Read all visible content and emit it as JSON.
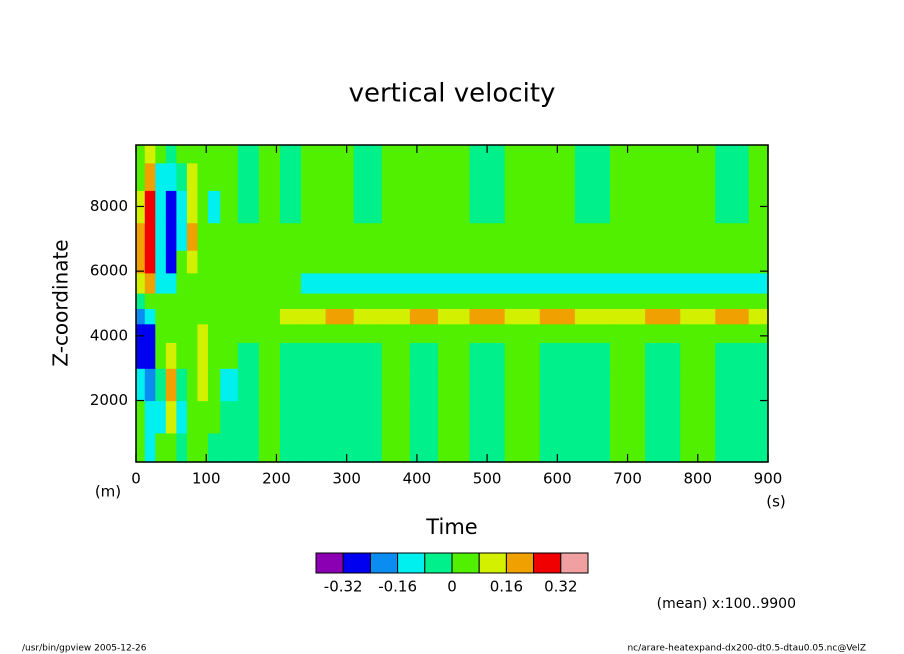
{
  "chart_data": {
    "type": "contour",
    "title": "vertical velocity",
    "x_label": "Time",
    "y_label": "Z-coordinate",
    "x_unit": "(s)",
    "y_unit": "(m)",
    "note": "(mean) x:100..9900",
    "footer_left": "/usr/bin/gpview  2005-12-26",
    "footer_right": "nc/arare-heatexpand-dx200-dt0.5-dtau0.05.nc@VelZ",
    "xlim": [
      0,
      900
    ],
    "ylim": [
      100,
      9900
    ],
    "xticks": [
      0,
      100,
      200,
      300,
      400,
      500,
      600,
      700,
      800,
      900
    ],
    "yticks": [
      2000,
      4000,
      6000,
      8000
    ],
    "x": [
      5,
      20,
      35,
      50,
      65,
      80,
      95,
      110,
      130,
      160,
      190,
      220,
      250,
      290,
      330,
      370,
      410,
      450,
      500,
      550,
      600,
      650,
      700,
      750,
      800,
      850,
      895
    ],
    "y": [
      500,
      1500,
      2500,
      3500,
      4100,
      4650,
      5050,
      5600,
      6300,
      7000,
      8000,
      9000,
      9700
    ],
    "z": [
      [
        0.04,
        -0.1,
        0.04,
        0.04,
        -0.04,
        0.04,
        0.04,
        -0.04,
        -0.04,
        -0.04,
        0.04,
        -0.04,
        -0.04,
        -0.04,
        -0.04,
        0.04,
        -0.04,
        0.04,
        -0.04,
        0.04,
        -0.04,
        -0.04,
        0.04,
        -0.04,
        0.04,
        -0.04,
        -0.04
      ],
      [
        0.04,
        -0.15,
        -0.1,
        0.12,
        -0.12,
        0.04,
        0.04,
        0.04,
        -0.04,
        -0.04,
        0.04,
        -0.04,
        -0.04,
        -0.04,
        -0.04,
        0.04,
        -0.04,
        0.04,
        -0.04,
        0.04,
        -0.04,
        -0.04,
        0.04,
        -0.04,
        0.04,
        -0.04,
        -0.04
      ],
      [
        -0.1,
        -0.2,
        -0.05,
        0.2,
        -0.06,
        0.04,
        0.12,
        0.04,
        -0.1,
        -0.04,
        0.04,
        -0.04,
        -0.04,
        -0.04,
        -0.04,
        0.04,
        -0.04,
        0.04,
        -0.04,
        0.04,
        -0.04,
        -0.04,
        0.04,
        -0.04,
        0.04,
        -0.04,
        -0.04
      ],
      [
        -0.25,
        -0.3,
        0.04,
        0.12,
        0.04,
        0.04,
        0.12,
        0.04,
        0.04,
        -0.04,
        0.04,
        -0.04,
        -0.04,
        -0.04,
        -0.04,
        0.04,
        -0.04,
        0.04,
        -0.04,
        0.04,
        -0.04,
        -0.04,
        0.04,
        -0.04,
        0.04,
        -0.04,
        -0.04
      ],
      [
        -0.3,
        -0.25,
        0.04,
        0.04,
        0.04,
        0.04,
        0.1,
        0.04,
        0.04,
        0.04,
        0.04,
        0.04,
        0.04,
        0.04,
        0.04,
        0.04,
        0.04,
        0.04,
        0.04,
        0.04,
        0.04,
        0.04,
        0.04,
        0.04,
        0.04,
        0.04,
        0.04
      ],
      [
        -0.2,
        -0.1,
        0.04,
        0.04,
        0.04,
        0.04,
        0.04,
        0.04,
        0.04,
        0.04,
        0.04,
        0.1,
        0.12,
        0.2,
        0.12,
        0.12,
        0.2,
        0.12,
        0.2,
        0.12,
        0.2,
        0.12,
        0.12,
        0.2,
        0.12,
        0.2,
        0.12
      ],
      [
        -0.05,
        0.04,
        0.04,
        0.04,
        0.04,
        0.04,
        0.04,
        0.04,
        0.04,
        0.04,
        0.04,
        0.04,
        0.04,
        0.04,
        0.04,
        0.04,
        0.04,
        0.04,
        0.04,
        0.04,
        0.04,
        0.04,
        0.04,
        0.04,
        0.04,
        0.04,
        0.04
      ],
      [
        0.1,
        0.2,
        -0.1,
        -0.1,
        0.04,
        0.04,
        0.04,
        0.04,
        0.04,
        0.04,
        0.04,
        0.04,
        -0.12,
        -0.12,
        -0.12,
        -0.12,
        -0.12,
        -0.12,
        -0.12,
        -0.12,
        -0.12,
        -0.12,
        -0.12,
        -0.12,
        -0.12,
        -0.12,
        -0.12
      ],
      [
        0.2,
        0.3,
        -0.15,
        -0.25,
        0.04,
        0.12,
        0.04,
        0.04,
        0.04,
        0.04,
        0.04,
        0.04,
        0.04,
        0.04,
        0.04,
        0.04,
        0.04,
        0.04,
        0.04,
        0.04,
        0.04,
        0.04,
        0.04,
        0.04,
        0.04,
        0.04,
        0.04
      ],
      [
        0.2,
        0.3,
        -0.15,
        -0.3,
        -0.1,
        0.2,
        0.04,
        0.04,
        0.04,
        0.04,
        0.04,
        0.04,
        0.04,
        0.04,
        0.04,
        0.04,
        0.04,
        0.04,
        0.04,
        0.04,
        0.04,
        0.04,
        0.04,
        0.04,
        0.04,
        0.04,
        0.04
      ],
      [
        0.1,
        0.3,
        -0.15,
        -0.25,
        -0.1,
        0.14,
        0.04,
        -0.1,
        0.04,
        -0.04,
        0.04,
        -0.04,
        0.04,
        0.04,
        -0.04,
        0.04,
        0.04,
        0.04,
        -0.04,
        0.04,
        0.04,
        -0.04,
        0.04,
        0.04,
        0.04,
        -0.04,
        0.04
      ],
      [
        0.04,
        0.2,
        -0.1,
        -0.15,
        -0.05,
        0.1,
        0.04,
        0.04,
        0.04,
        -0.04,
        0.04,
        -0.04,
        0.04,
        0.04,
        -0.04,
        0.04,
        0.04,
        0.04,
        -0.04,
        0.04,
        0.04,
        -0.04,
        0.04,
        0.04,
        0.04,
        -0.04,
        0.04
      ],
      [
        0.04,
        0.1,
        0.04,
        -0.05,
        0.04,
        0.04,
        0.04,
        0.04,
        0.04,
        -0.04,
        0.04,
        -0.04,
        0.04,
        0.04,
        -0.04,
        0.04,
        0.04,
        0.04,
        -0.04,
        0.04,
        0.04,
        -0.04,
        0.04,
        0.04,
        0.04,
        -0.04,
        0.04
      ]
    ],
    "levels": [
      -0.32,
      -0.24,
      -0.16,
      -0.08,
      0,
      0.08,
      0.16,
      0.24,
      0.32
    ],
    "colors": [
      "#8c00b4",
      "#0000f0",
      "#0a8cf0",
      "#00f0f0",
      "#00f08c",
      "#50f000",
      "#d2f000",
      "#f0a000",
      "#f00000",
      "#f0a0a0"
    ],
    "colorbar_ticks": [
      -0.32,
      -0.16,
      0,
      0.16,
      0.32
    ]
  }
}
